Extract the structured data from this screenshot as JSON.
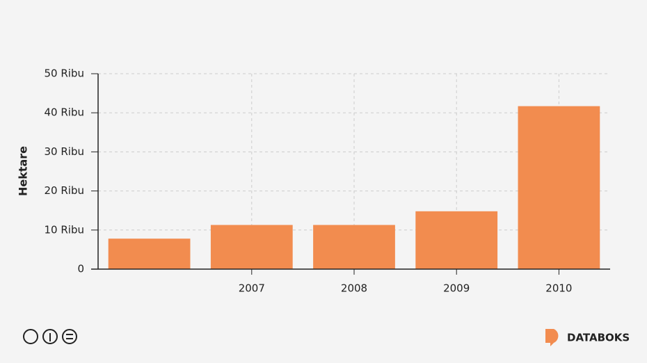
{
  "chart_data": {
    "type": "bar",
    "y_label": "Hektare",
    "categories": [
      null,
      "2007",
      "2008",
      "2009",
      "2010"
    ],
    "values": [
      7.8,
      11.3,
      11.3,
      14.8,
      41.7
    ],
    "color": "#f28c4f",
    "ylim": [
      0,
      50
    ],
    "yticks": [
      0,
      {
        "value": 10,
        "label": "10 Ribu"
      },
      {
        "value": 20,
        "label": "20 Ribu"
      },
      {
        "value": 30,
        "label": "30 Ribu"
      },
      {
        "value": 40,
        "label": "40 Ribu"
      },
      {
        "value": 50,
        "label": "50 Ribu"
      }
    ],
    "grid": true
  },
  "footer": {
    "brand": "DATABOKS"
  }
}
